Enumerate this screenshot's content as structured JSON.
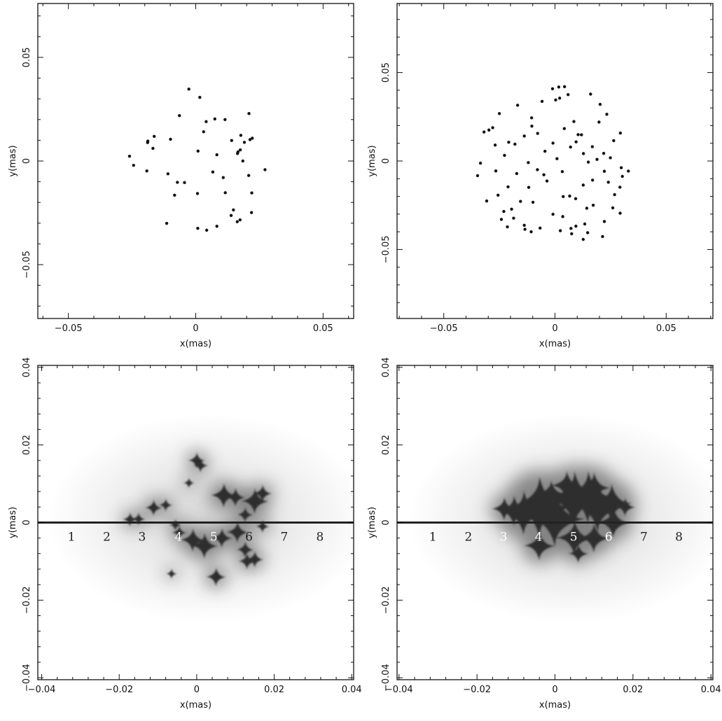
{
  "chart_data": [
    {
      "panel": "top-left",
      "type": "scatter",
      "xlabel": "x(mas)",
      "ylabel": "y(mas)",
      "xlim": [
        -0.062,
        0.062
      ],
      "ylim": [
        -0.076,
        0.076
      ],
      "xticks": [
        -0.05,
        0,
        0.05
      ],
      "yticks": [
        -0.05,
        0,
        0.05
      ],
      "xtick_labels": [
        "−0.05",
        "0",
        "0.05"
      ],
      "ytick_labels": [
        "−0.05",
        "0",
        "0.05"
      ],
      "grid": false,
      "series": [
        {
          "x": [
            -0.0027,
            0.0016,
            -0.0064,
            0.0041,
            0.0075,
            0.0115,
            0.0209,
            0.0031,
            -0.0163,
            -0.0188,
            0.0177,
            0.0222,
            0.0213,
            -0.0099,
            -0.0168,
            -0.0189,
            0.0141,
            0.0191,
            0.0166,
            0.0175,
            0.0164,
            0.0009,
            0.0083,
            0.0185,
            0.0272,
            -0.026,
            -0.0244,
            -0.0192,
            -0.0109,
            0.0108,
            0.0208,
            0.022,
            -0.0072,
            -0.0044,
            -0.0083,
            0.0067,
            0.0007,
            0.0116,
            0.0148,
            0.0219,
            0.0139,
            0.0163,
            0.0174,
            -0.0114,
            0.0083,
            0.0008,
            0.0043
          ],
          "y": [
            0.0347,
            0.0307,
            0.0219,
            0.019,
            0.0203,
            0.02,
            0.0229,
            0.0141,
            0.0119,
            0.0096,
            0.0124,
            0.011,
            0.0103,
            0.0105,
            0.0061,
            0.0089,
            0.0099,
            0.009,
            0.0044,
            0.0054,
            0.0036,
            0.0048,
            0.003,
            0.0,
            -0.0042,
            0.0023,
            -0.0021,
            -0.0048,
            -0.0062,
            -0.008,
            -0.007,
            -0.0154,
            -0.0103,
            -0.0104,
            -0.0165,
            -0.0053,
            -0.0157,
            -0.0153,
            -0.0236,
            -0.0249,
            -0.0263,
            -0.0293,
            -0.0284,
            -0.0301,
            -0.0315,
            -0.0325,
            -0.0334
          ]
        }
      ]
    },
    {
      "panel": "top-right",
      "type": "scatter",
      "xlabel": "x(mas)",
      "ylabel": "y(mas)",
      "xlim": [
        -0.071,
        0.071
      ],
      "ylim": [
        -0.089,
        0.089
      ],
      "xticks": [
        -0.05,
        0,
        0.05
      ],
      "yticks": [
        -0.05,
        0,
        0.05
      ],
      "xtick_labels": [
        "−0.05",
        "0",
        "0.05"
      ],
      "ytick_labels": [
        "−0.05",
        "0",
        "0.05"
      ],
      "grid": false,
      "series": [
        {
          "x": [
            -0.0011,
            0.0017,
            0.0043,
            0.0059,
            0.016,
            0.0203,
            -0.0058,
            0.0021,
            0.0003,
            -0.0168,
            -0.0105,
            0.0233,
            -0.025,
            -0.028,
            0.0085,
            0.0198,
            -0.0104,
            0.0042,
            -0.0078,
            0.0104,
            -0.0297,
            0.0119,
            0.0294,
            -0.0138,
            -0.0319,
            0.0264,
            -0.0208,
            -0.0009,
            0.007,
            0.0095,
            -0.018,
            -0.0269,
            0.0168,
            0.0219,
            -0.0045,
            0.0249,
            0.0128,
            -0.0227,
            0.0009,
            -0.012,
            0.0189,
            0.015,
            -0.0335,
            0.0298,
            -0.0079,
            0.0222,
            -0.0266,
            0.0033,
            -0.0172,
            0.0303,
            -0.005,
            0.0169,
            -0.0348,
            0.024,
            -0.0036,
            0.0127,
            0.033,
            -0.0211,
            -0.0118,
            0.0292,
            -0.0256,
            0.0066,
            0.0037,
            0.0093,
            0.0268,
            -0.0099,
            -0.0155,
            0.0172,
            -0.0307,
            0.026,
            -0.023,
            0.0143,
            -0.0195,
            -0.0009,
            0.0293,
            -0.0186,
            0.0035,
            0.0222,
            -0.0241,
            0.0134,
            -0.0138,
            0.0094,
            0.0072,
            -0.0067,
            0.0024,
            0.0147,
            -0.0107,
            0.0075,
            0.0214,
            -0.0214,
            -0.0135,
            0.0127
          ],
          "y": [
            0.0408,
            0.0418,
            0.042,
            0.0375,
            0.0378,
            0.032,
            0.0337,
            0.0355,
            0.0345,
            0.0315,
            0.0244,
            0.0264,
            0.0268,
            0.0188,
            0.0223,
            0.022,
            0.0197,
            0.0183,
            0.0156,
            0.0149,
            0.0175,
            0.0148,
            0.0158,
            0.0141,
            0.0164,
            0.0115,
            0.0106,
            0.0101,
            0.0079,
            0.0108,
            0.0095,
            0.009,
            0.0081,
            0.0043,
            0.0055,
            0.0018,
            0.0042,
            0.0032,
            0.0013,
            -0.0009,
            0.0009,
            -0.0006,
            -0.0012,
            -0.0038,
            -0.0049,
            -0.0058,
            -0.0056,
            -0.006,
            -0.0071,
            -0.0087,
            -0.0078,
            -0.0108,
            -0.0083,
            -0.012,
            -0.0113,
            -0.0136,
            -0.0057,
            -0.0146,
            -0.0149,
            -0.0148,
            -0.0193,
            -0.0198,
            -0.0201,
            -0.0213,
            -0.019,
            -0.0233,
            -0.0228,
            -0.025,
            -0.0226,
            -0.0265,
            -0.0285,
            -0.0267,
            -0.0272,
            -0.0301,
            -0.0295,
            -0.0323,
            -0.0314,
            -0.0342,
            -0.033,
            -0.0356,
            -0.0363,
            -0.0368,
            -0.0381,
            -0.0379,
            -0.0394,
            -0.0405,
            -0.04,
            -0.0411,
            -0.0427,
            -0.0372,
            -0.0386,
            -0.0443
          ]
        }
      ]
    },
    {
      "panel": "bottom-left",
      "type": "heatmap",
      "xlabel": "x(mas)",
      "ylabel": "y(mas)",
      "xlim": [
        -0.041,
        0.0405
      ],
      "ylim": [
        -0.0405,
        0.0405
      ],
      "xticks": [
        -0.04,
        -0.02,
        0,
        0.02,
        0.04
      ],
      "yticks": [
        -0.04,
        -0.02,
        0,
        0.02,
        0.04
      ],
      "xtick_labels": [
        "−0.04",
        "−0.02",
        "0",
        "0.02",
        "0.04"
      ],
      "ytick_labels": [
        "−0.04",
        "−0.02",
        "0",
        "0.02",
        "0.04"
      ],
      "grid": false,
      "track_y": 0,
      "track_labels": [
        {
          "text": "1",
          "x": -0.0323
        },
        {
          "text": "2",
          "x": -0.0232
        },
        {
          "text": "3",
          "x": -0.0141
        },
        {
          "text": "4",
          "x": -0.0047
        },
        {
          "text": "5",
          "x": 0.0044
        },
        {
          "text": "6",
          "x": 0.0135
        },
        {
          "text": "7",
          "x": 0.0226
        },
        {
          "text": "8",
          "x": 0.0318
        }
      ],
      "caustics": [
        {
          "x": 0.0,
          "y": 0.016,
          "r": 0.0014
        },
        {
          "x": 0.001,
          "y": 0.0147,
          "r": 0.0012
        },
        {
          "x": -0.008,
          "y": 0.0045,
          "r": 0.0011
        },
        {
          "x": -0.0111,
          "y": 0.0038,
          "r": 0.0014
        },
        {
          "x": -0.015,
          "y": 0.0009,
          "r": 0.0011
        },
        {
          "x": -0.0172,
          "y": 0.0008,
          "r": 0.0012
        },
        {
          "x": -0.0055,
          "y": -0.0006,
          "r": 0.001
        },
        {
          "x": -0.0045,
          "y": -0.0026,
          "r": 0.0012
        },
        {
          "x": -0.002,
          "y": 0.0102,
          "r": 0.0009
        },
        {
          "x": 0.007,
          "y": 0.007,
          "r": 0.0021
        },
        {
          "x": 0.01,
          "y": 0.0065,
          "r": 0.0016
        },
        {
          "x": 0.015,
          "y": 0.0055,
          "r": 0.0022
        },
        {
          "x": 0.017,
          "y": 0.0075,
          "r": 0.0015
        },
        {
          "x": 0.0125,
          "y": 0.002,
          "r": 0.0013
        },
        {
          "x": -0.001,
          "y": -0.0045,
          "r": 0.002
        },
        {
          "x": 0.002,
          "y": -0.006,
          "r": 0.0022
        },
        {
          "x": 0.0065,
          "y": -0.004,
          "r": 0.0017
        },
        {
          "x": 0.0105,
          "y": -0.0025,
          "r": 0.0018
        },
        {
          "x": 0.0125,
          "y": -0.007,
          "r": 0.0014
        },
        {
          "x": 0.015,
          "y": -0.0095,
          "r": 0.0014
        },
        {
          "x": 0.013,
          "y": -0.01,
          "r": 0.0014
        },
        {
          "x": 0.005,
          "y": -0.014,
          "r": 0.0016
        },
        {
          "x": -0.0065,
          "y": -0.0132,
          "r": 0.0009
        },
        {
          "x": 0.017,
          "y": -0.001,
          "r": 0.0011
        }
      ]
    },
    {
      "panel": "bottom-right",
      "type": "heatmap",
      "xlabel": "x(mas)",
      "ylabel": "y(mas)",
      "xlim": [
        -0.0405,
        0.0405
      ],
      "ylim": [
        -0.0405,
        0.0405
      ],
      "xticks": [
        -0.04,
        -0.02,
        0,
        0.02,
        0.04
      ],
      "yticks": [
        -0.04,
        -0.02,
        0,
        0.02,
        0.04
      ],
      "xtick_labels": [
        "−0.04",
        "−0.02",
        "0",
        "0.02",
        "0.04"
      ],
      "ytick_labels": [
        "−0.04",
        "−0.02",
        "0",
        "0.02",
        "0.04"
      ],
      "grid": false,
      "track_y": 0,
      "track_labels": [
        {
          "text": "1",
          "x": -0.0313
        },
        {
          "text": "2",
          "x": -0.0222
        },
        {
          "text": "3",
          "x": -0.0132
        },
        {
          "text": "4",
          "x": -0.0042
        },
        {
          "text": "5",
          "x": 0.0048
        },
        {
          "text": "6",
          "x": 0.0138
        },
        {
          "text": "7",
          "x": 0.0228
        },
        {
          "text": "8",
          "x": 0.0318
        }
      ],
      "caustics": [
        {
          "x": -0.004,
          "y": 0.004,
          "r": 0.0052
        },
        {
          "x": 0.0,
          "y": 0.001,
          "r": 0.0048
        },
        {
          "x": 0.005,
          "y": 0.006,
          "r": 0.0048
        },
        {
          "x": 0.0085,
          "y": 0.0065,
          "r": 0.0045
        },
        {
          "x": 0.011,
          "y": 0.004,
          "r": 0.0043
        },
        {
          "x": 0.0145,
          "y": 0.005,
          "r": 0.0033
        },
        {
          "x": -0.008,
          "y": 0.0025,
          "r": 0.0038
        },
        {
          "x": -0.0105,
          "y": 0.003,
          "r": 0.0026
        },
        {
          "x": -0.013,
          "y": 0.0035,
          "r": 0.002
        },
        {
          "x": -0.004,
          "y": -0.006,
          "r": 0.0025
        },
        {
          "x": 0.005,
          "y": -0.004,
          "r": 0.003
        },
        {
          "x": 0.01,
          "y": -0.004,
          "r": 0.0025
        },
        {
          "x": 0.015,
          "y": 0.0,
          "r": 0.0026
        },
        {
          "x": 0.006,
          "y": -0.008,
          "r": 0.0016
        },
        {
          "x": 0.003,
          "y": 0.0095,
          "r": 0.0025
        },
        {
          "x": 0.01,
          "y": 0.009,
          "r": 0.0026
        },
        {
          "x": -0.001,
          "y": 0.0075,
          "r": 0.0022
        },
        {
          "x": 0.018,
          "y": 0.004,
          "r": 0.0016
        }
      ]
    }
  ]
}
